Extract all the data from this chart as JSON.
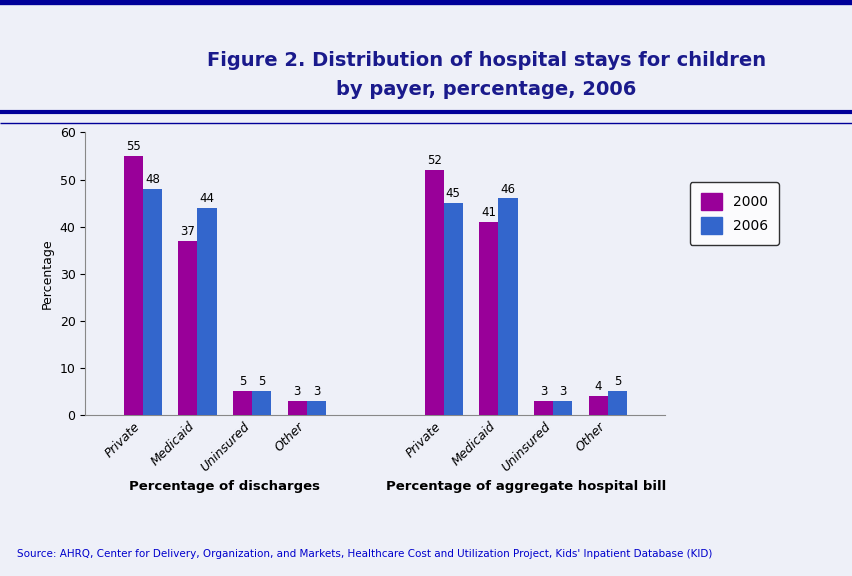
{
  "title_line1": "Figure 2. Distribution of hospital stays for children",
  "title_line2": "by payer, percentage, 2006",
  "title_color": "#1A1A8C",
  "background_color": "#EEF0F8",
  "plot_bg_color": "#EEF0F8",
  "header_bg_color": "#EEF0F8",
  "ylabel": "Percentage",
  "ylim": [
    0,
    60
  ],
  "yticks": [
    0,
    10,
    20,
    30,
    40,
    50,
    60
  ],
  "group1_label": "Percentage of discharges",
  "group2_label": "Percentage of aggregate hospital bill",
  "categories": [
    "Private",
    "Medicaid",
    "Uninsured",
    "Other"
  ],
  "group1_2000": [
    55,
    37,
    5,
    3
  ],
  "group1_2006": [
    48,
    44,
    5,
    3
  ],
  "group2_2000": [
    52,
    41,
    3,
    4
  ],
  "group2_2006": [
    45,
    46,
    3,
    5
  ],
  "color_2000": "#990099",
  "color_2006": "#3366CC",
  "legend_labels": [
    "2000",
    "2006"
  ],
  "source_text": "Source: AHRQ, Center for Delivery, Organization, and Markets, Healthcare Cost and Utilization Project, Kids' Inpatient Database (KID)",
  "source_color": "#0000CC",
  "header_line_color": "#000099",
  "bar_width": 0.35
}
